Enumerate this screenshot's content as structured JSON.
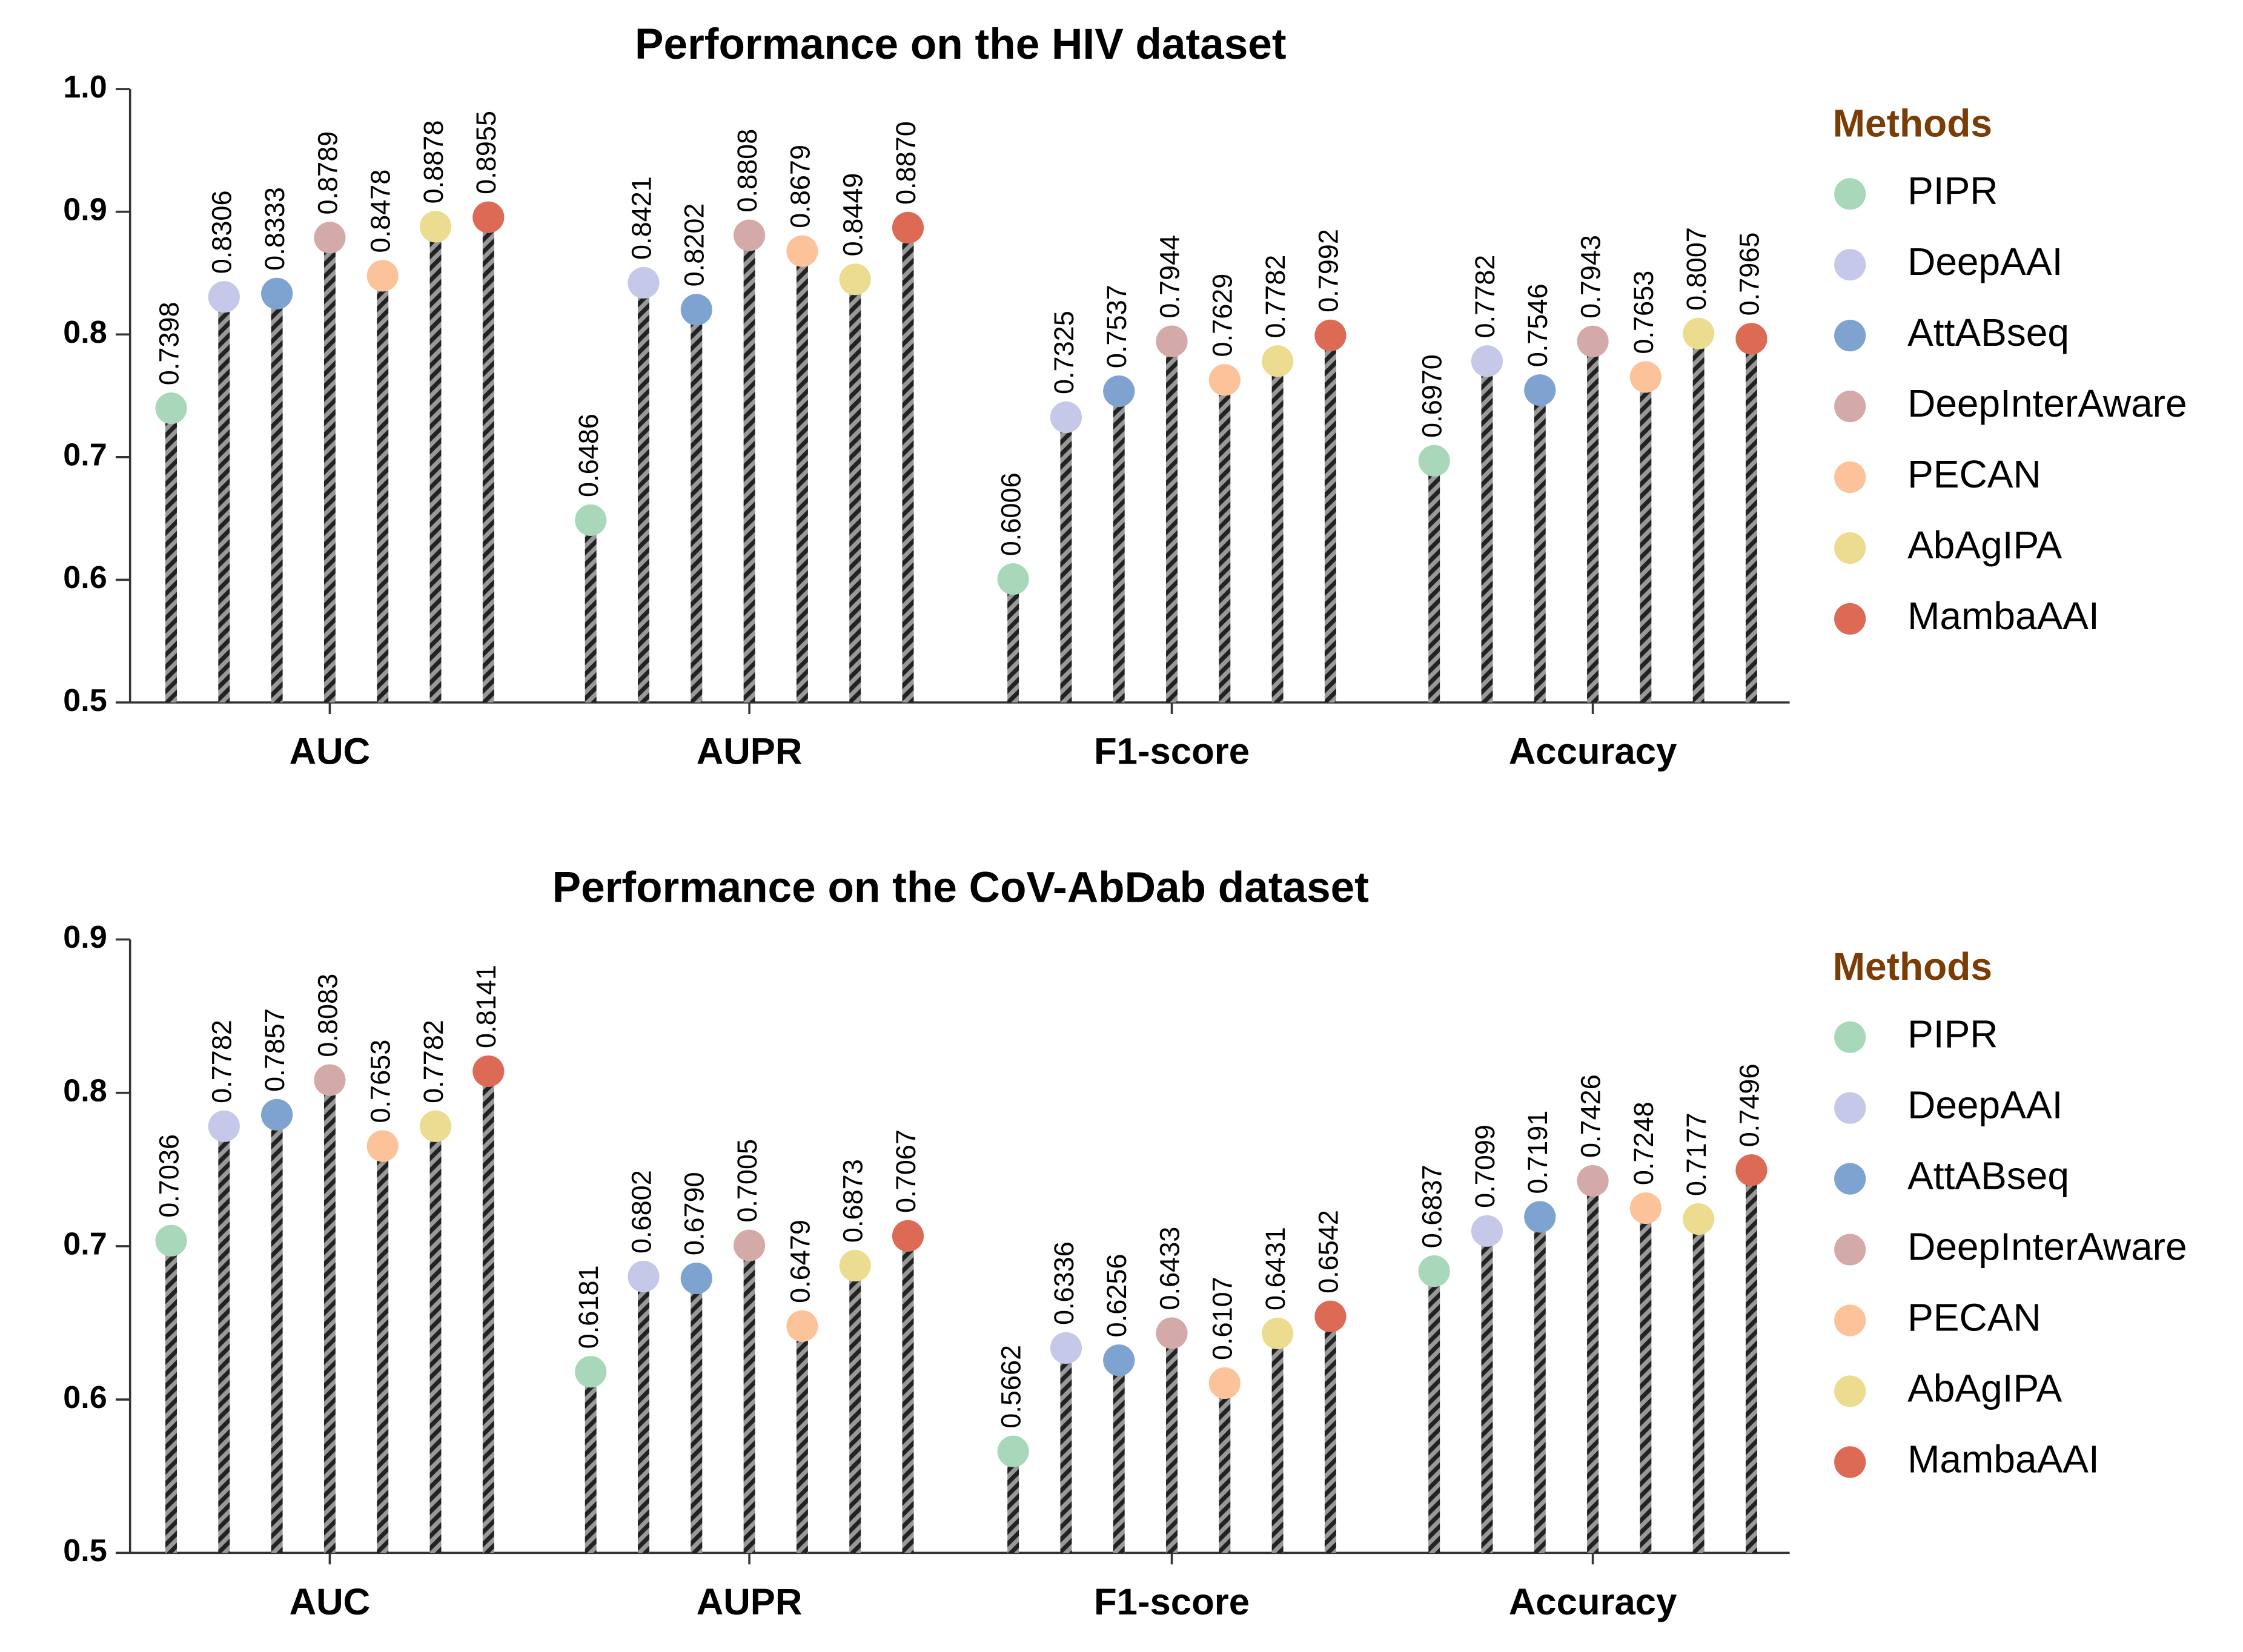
{
  "chart_data": [
    {
      "type": "lollipop",
      "title": "Performance on the HIV dataset",
      "legend_title": "Methods",
      "legend": "right",
      "categories": [
        "AUC",
        "AUPR",
        "F1-score",
        "Accuracy"
      ],
      "ylim": [
        0.5,
        1.0
      ],
      "yticks": [
        0.5,
        0.6,
        0.7,
        0.8,
        0.9,
        {
          "value": 1,
          "label": "1.0"
        }
      ],
      "series": [
        {
          "name": "PIPR",
          "color": "#a8d8b9",
          "values": [
            0.7398,
            0.6486,
            0.6006,
            0.697
          ],
          "value_labels": [
            "0.7398",
            "0.6486",
            "0.6006",
            "0.6970"
          ]
        },
        {
          "name": "DeepAAI",
          "color": "#c5c8e8",
          "values": [
            0.8306,
            0.8421,
            0.7325,
            0.7782
          ],
          "value_labels": [
            "0.8306",
            "0.8421",
            "0.7325",
            "0.7782"
          ]
        },
        {
          "name": "AttABseq",
          "color": "#7fa3d1",
          "values": [
            0.8333,
            0.8202,
            0.7537,
            0.7546
          ],
          "value_labels": [
            "0.8333",
            "0.8202",
            "0.7537",
            "0.7546"
          ]
        },
        {
          "name": "DeepInterAware",
          "color": "#d4aaa8",
          "values": [
            0.8789,
            0.8808,
            0.7944,
            0.7943
          ],
          "value_labels": [
            "0.8789",
            "0.8808",
            "0.7944",
            "0.7943"
          ]
        },
        {
          "name": "PECAN",
          "color": "#fcc39a",
          "values": [
            0.8478,
            0.8679,
            0.7629,
            0.7653
          ],
          "value_labels": [
            "0.8478",
            "0.8679",
            "0.7629",
            "0.7653"
          ]
        },
        {
          "name": "AbAgIPA",
          "color": "#ecdc90",
          "values": [
            0.8878,
            0.8449,
            0.7782,
            0.8007
          ],
          "value_labels": [
            "0.8878",
            "0.8449",
            "0.7782",
            "0.8007"
          ]
        },
        {
          "name": "MambaAAI",
          "color": "#dc6a55",
          "values": [
            0.8955,
            0.887,
            0.7992,
            0.7965
          ],
          "value_labels": [
            "0.8955",
            "0.8870",
            "0.7992",
            "0.7965"
          ]
        }
      ]
    },
    {
      "type": "lollipop",
      "title": "Performance on the CoV-AbDab dataset",
      "legend_title": "Methods",
      "legend": "right",
      "categories": [
        "AUC",
        "AUPR",
        "F1-score",
        "Accuracy"
      ],
      "ylim": [
        0.5,
        0.9
      ],
      "yticks": [
        0.5,
        0.6,
        0.7,
        0.8,
        0.9
      ],
      "series": [
        {
          "name": "PIPR",
          "color": "#a8d8b9",
          "values": [
            0.7036,
            0.6181,
            0.5662,
            0.6837
          ],
          "value_labels": [
            "0.7036",
            "0.6181",
            "0.5662",
            "0.6837"
          ]
        },
        {
          "name": "DeepAAI",
          "color": "#c5c8e8",
          "values": [
            0.7782,
            0.6802,
            0.6336,
            0.7099
          ],
          "value_labels": [
            "0.7782",
            "0.6802",
            "0.6336",
            "0.7099"
          ]
        },
        {
          "name": "AttABseq",
          "color": "#7fa3d1",
          "values": [
            0.7857,
            0.679,
            0.6256,
            0.7191
          ],
          "value_labels": [
            "0.7857",
            "0.6790",
            "0.6256",
            "0.7191"
          ]
        },
        {
          "name": "DeepInterAware",
          "color": "#d4aaa8",
          "values": [
            0.8083,
            0.7005,
            0.6433,
            0.7426
          ],
          "value_labels": [
            "0.8083",
            "0.7005",
            "0.6433",
            "0.7426"
          ]
        },
        {
          "name": "PECAN",
          "color": "#fcc39a",
          "values": [
            0.7653,
            0.6479,
            0.6107,
            0.7248
          ],
          "value_labels": [
            "0.7653",
            "0.6479",
            "0.6107",
            "0.7248"
          ]
        },
        {
          "name": "AbAgIPA",
          "color": "#ecdc90",
          "values": [
            0.7782,
            0.6873,
            0.6431,
            0.7177
          ],
          "value_labels": [
            "0.7782",
            "0.6873",
            "0.6431",
            "0.7177"
          ]
        },
        {
          "name": "MambaAAI",
          "color": "#dc6a55",
          "values": [
            0.8141,
            0.7067,
            0.6542,
            0.7496
          ],
          "value_labels": [
            "0.8141",
            "0.7067",
            "0.6542",
            "0.7496"
          ]
        }
      ]
    }
  ]
}
